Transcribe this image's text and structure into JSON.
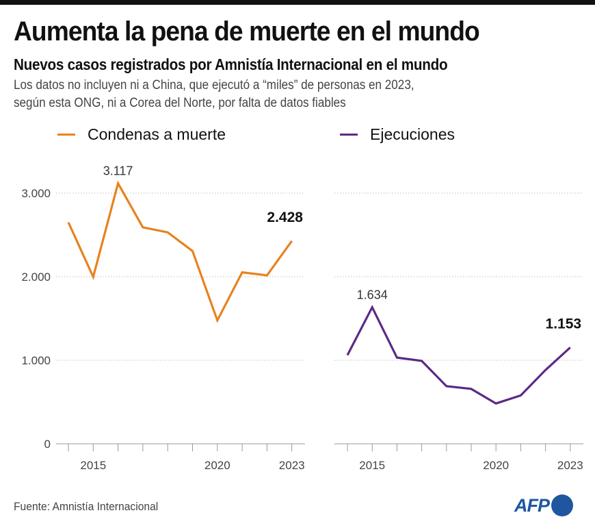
{
  "header": {
    "title": "Aumenta la pena de muerte en el mundo",
    "subtitle": "Nuevos casos registrados por Amnistía Internacional en el mundo",
    "description_line1": "Los datos no incluyen ni a China, que ejecutó a “miles” de personas en 2023,",
    "description_line2": "según esta ONG, ni a Corea del Norte, por falta de datos fiables"
  },
  "footer": {
    "source": "Fuente: Amnistía Internacional",
    "logo": "AFP"
  },
  "colors": {
    "condenas": "#e8821e",
    "ejecuciones": "#5b2a86",
    "grid": "#bbbbbb",
    "axis": "#bbbbbb",
    "logo": "#1e56a0"
  },
  "chart_data": [
    {
      "type": "line",
      "title": "Condenas a muerte",
      "legend": "Condenas a muerte",
      "x": [
        2014,
        2015,
        2016,
        2017,
        2018,
        2019,
        2020,
        2021,
        2022,
        2023
      ],
      "values": [
        2650,
        1998,
        3117,
        2591,
        2531,
        2307,
        1477,
        2052,
        2016,
        2428
      ],
      "ylim": [
        0,
        3400
      ],
      "yticks": [
        0,
        1000,
        2000,
        3000
      ],
      "ytick_labels": [
        "0",
        "1.000",
        "2.000",
        "3.000"
      ],
      "xtick_labels": [
        {
          "x": 2015,
          "label": "2015"
        },
        {
          "x": 2020,
          "label": "2020"
        },
        {
          "x": 2023,
          "label": "2023"
        }
      ],
      "annotations": [
        {
          "x": 2016,
          "label": "3.117",
          "bold": false
        },
        {
          "x": 2023,
          "label": "2.428",
          "bold": true
        }
      ],
      "grid": true,
      "legend_position": "top-left"
    },
    {
      "type": "line",
      "title": "Ejecuciones",
      "legend": "Ejecuciones",
      "x": [
        2014,
        2015,
        2016,
        2017,
        2018,
        2019,
        2020,
        2021,
        2022,
        2023
      ],
      "values": [
        1061,
        1634,
        1032,
        993,
        690,
        657,
        483,
        579,
        883,
        1153
      ],
      "ylim": [
        0,
        3400
      ],
      "yticks": [
        0,
        1000,
        2000,
        3000
      ],
      "xtick_labels": [
        {
          "x": 2015,
          "label": "2015"
        },
        {
          "x": 2020,
          "label": "2020"
        },
        {
          "x": 2023,
          "label": "2023"
        }
      ],
      "annotations": [
        {
          "x": 2015,
          "label": "1.634",
          "bold": false
        },
        {
          "x": 2023,
          "label": "1.153",
          "bold": true
        }
      ],
      "grid": true,
      "legend_position": "top-left"
    }
  ]
}
